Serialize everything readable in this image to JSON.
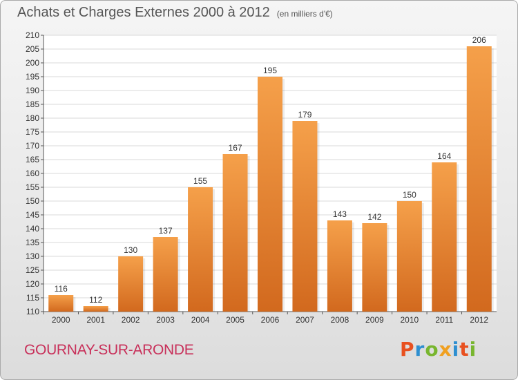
{
  "header": {
    "title": "Achats et Charges Externes 2000 à 2012",
    "unit_note": "(en milliers d'€)"
  },
  "footer": {
    "commune": "GOURNAY-SUR-ARONDE",
    "logo_text": "Proxiti",
    "logo_colors": [
      "#e8501f",
      "#2e8fd0",
      "#78b62f",
      "#f0a020",
      "#2e8fd0",
      "#e8501f",
      "#78b62f"
    ]
  },
  "chart_data": {
    "type": "bar",
    "categories": [
      "2000",
      "2001",
      "2002",
      "2003",
      "2004",
      "2005",
      "2006",
      "2007",
      "2008",
      "2009",
      "2010",
      "2011",
      "2012"
    ],
    "values": [
      116,
      112,
      130,
      137,
      155,
      167,
      195,
      179,
      143,
      142,
      150,
      164,
      206
    ],
    "ylim": [
      110,
      210
    ],
    "yticks": [
      110,
      115,
      120,
      125,
      130,
      135,
      140,
      145,
      150,
      155,
      160,
      165,
      170,
      175,
      180,
      185,
      190,
      195,
      200,
      205,
      210
    ],
    "grid": true,
    "bar_color_top": "#f5a04a",
    "bar_color_bottom": "#d2691e",
    "plot_bg": "#ffffff",
    "grid_color": "#d8d8d8"
  }
}
